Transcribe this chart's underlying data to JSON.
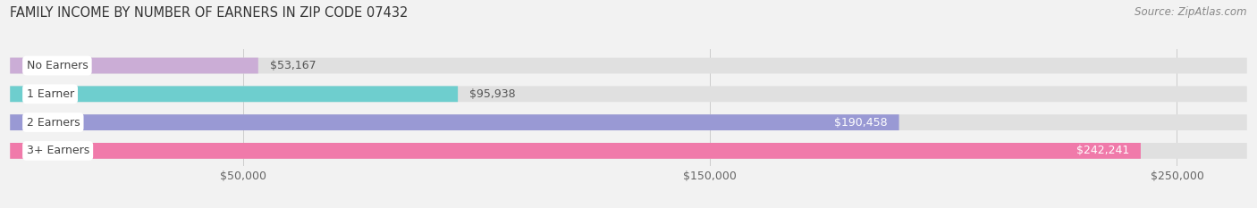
{
  "title": "FAMILY INCOME BY NUMBER OF EARNERS IN ZIP CODE 07432",
  "source": "Source: ZipAtlas.com",
  "categories": [
    "No Earners",
    "1 Earner",
    "2 Earners",
    "3+ Earners"
  ],
  "values": [
    53167,
    95938,
    190458,
    242241
  ],
  "bar_colors": [
    "#cbadd6",
    "#6ecece",
    "#9999d4",
    "#f07aaa"
  ],
  "label_text_colors": [
    "#444444",
    "#444444",
    "#444444",
    "#444444"
  ],
  "value_label_inside": [
    false,
    false,
    true,
    true
  ],
  "value_label_colors_inside": [
    "#ffffff",
    "#ffffff",
    "#ffffff",
    "#ffffff"
  ],
  "value_label_colors_outside": [
    "#555555",
    "#555555",
    "#555555",
    "#555555"
  ],
  "value_labels": [
    "$53,167",
    "$95,938",
    "$190,458",
    "$242,241"
  ],
  "xlim_max": 265000,
  "xticks": [
    50000,
    150000,
    250000
  ],
  "xtick_labels": [
    "$50,000",
    "$150,000",
    "$250,000"
  ],
  "background_color": "#f2f2f2",
  "bar_bg_color": "#e0e0e0",
  "title_fontsize": 10.5,
  "cat_fontsize": 9,
  "value_fontsize": 9,
  "source_fontsize": 8.5
}
